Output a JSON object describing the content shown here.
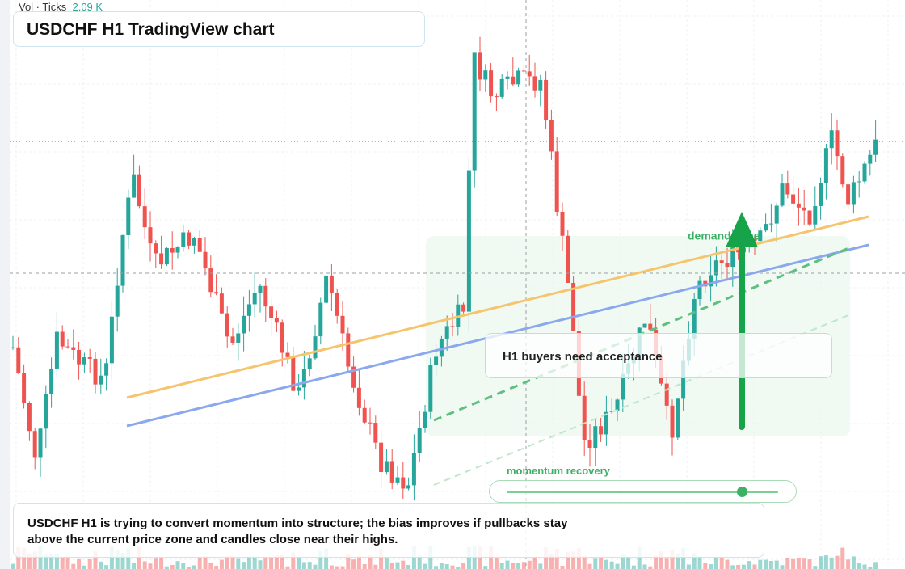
{
  "header": {
    "volume_label": "Vol · Ticks",
    "volume_value": "2.09 K",
    "title": "USDCHF H1 TradingView chart"
  },
  "annotations": {
    "zone": "demand zone",
    "callout": "H1 buyers need acceptance",
    "slider": "momentum recovery"
  },
  "summary": "USDCHF H1 is trying to convert momentum into structure; the bias improves if pullbacks stay above the current price zone and candles close near their highs."
}
